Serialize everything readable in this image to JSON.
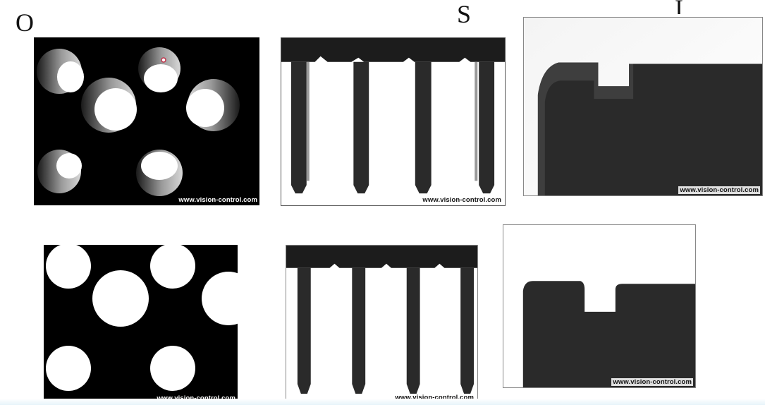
{
  "labels": {
    "left": "O",
    "middle": "S",
    "right": "I"
  },
  "watermark": "www.vision-control.com",
  "colors": {
    "background": "#ffffff",
    "black": "#000000",
    "dark_part": "#2b2b2b",
    "accent_marker": "#c0324a"
  }
}
